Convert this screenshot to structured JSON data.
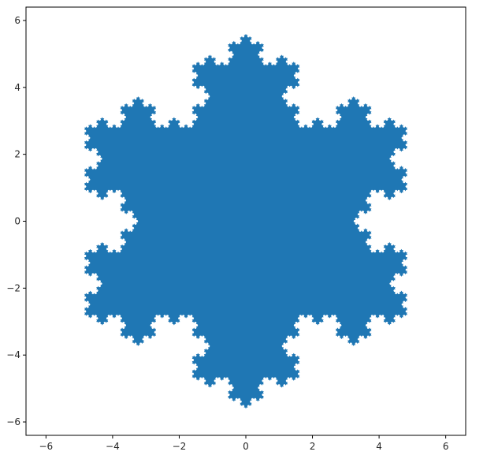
{
  "chart_data": {
    "type": "area",
    "title": "",
    "xlabel": "",
    "ylabel": "",
    "xlim": [
      -6.6,
      6.6
    ],
    "ylim": [
      -6.4,
      6.4
    ],
    "grid": false,
    "x_ticks": [
      "−6",
      "−4",
      "−2",
      "0",
      "2",
      "4",
      "6"
    ],
    "y_ticks": [
      "−6",
      "−4",
      "−2",
      "0",
      "2",
      "4",
      "6"
    ],
    "shape": "koch-snowflake",
    "fill_color": "#1f77b4",
    "outer_vertices": [
      [
        0,
        5.6
      ],
      [
        4.85,
        -2.8
      ],
      [
        -4.85,
        -2.8
      ]
    ],
    "koch_iterations": 5
  }
}
